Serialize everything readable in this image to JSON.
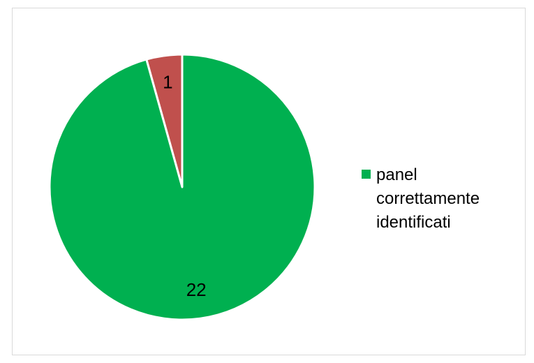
{
  "chart_data": {
    "type": "pie",
    "categories": [
      "",
      "panel correttamente identificati"
    ],
    "values": [
      1,
      22
    ],
    "data_labels": [
      "1",
      "22"
    ],
    "colors": [
      "#c0504d",
      "#00b050"
    ],
    "start_angle_deg": 0,
    "direction": "clockwise",
    "legend": {
      "position": "right",
      "entries": [
        {
          "label": "panel correttamente identificati",
          "color": "#00b050"
        }
      ]
    }
  }
}
